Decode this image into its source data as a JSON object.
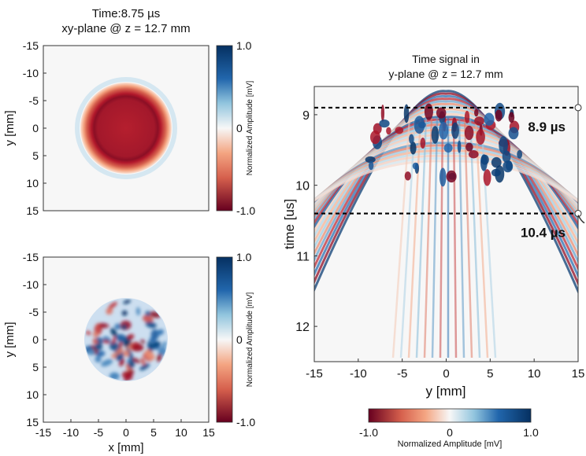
{
  "chart_data": [
    {
      "type": "heatmap",
      "title": "Time:8.75 µs",
      "subtitle": "xy-plane @ z = 12.7 mm",
      "xlabel": "",
      "ylabel": "y [mm]",
      "xlim": [
        -15,
        15
      ],
      "ylim": [
        -15,
        15
      ],
      "y_ticks": [
        "-15",
        "-10",
        "-5",
        "0",
        "5",
        "10",
        "15"
      ],
      "description_pattern": "uniform negative disc radius ~8.7 mm with faint positive rim",
      "colorbar": {
        "ticks": [
          "1.0",
          "0",
          "-1.0"
        ],
        "label": "Normalized Amplitude [mV]",
        "range": [
          -1.0,
          1.0
        ]
      }
    },
    {
      "type": "heatmap",
      "title": "",
      "xlabel": "x [mm]",
      "ylabel": "y [mm]",
      "xlim": [
        -15,
        15
      ],
      "ylim": [
        -15,
        15
      ],
      "x_ticks": [
        "-15",
        "-10",
        "-5",
        "0",
        "5",
        "10",
        "15"
      ],
      "y_ticks": [
        "-15",
        "-10",
        "-5",
        "0",
        "5",
        "10",
        "15"
      ],
      "colorbar": {
        "ticks": [
          "1.0",
          "0",
          "-1.0"
        ],
        "label": "Normalized Amplitude [mV]",
        "range": [
          -1.0,
          1.0
        ]
      }
    },
    {
      "type": "heatmap",
      "title": "Time signal in",
      "subtitle": "y-plane @ z = 12.7 mm",
      "xlabel": "y [mm]",
      "ylabel": "time [us]",
      "xlim": [
        -15,
        15
      ],
      "ylim": [
        8.6,
        12.5
      ],
      "x_ticks": [
        "-15",
        "-10",
        "-5",
        "0",
        "5",
        "10",
        "15"
      ],
      "y_ticks": [
        "9",
        "10",
        "11",
        "12"
      ],
      "annotations": [
        {
          "time": 8.9,
          "label": "8.9 µs"
        },
        {
          "time": 10.4,
          "label": "10.4 µs"
        }
      ],
      "colorbar": {
        "ticks": [
          "-1.0",
          "0",
          "1.0"
        ],
        "label": "Normalized Amplitude [mV]",
        "range": [
          -1.0,
          1.0
        ]
      }
    }
  ],
  "colors": {
    "negative": "#67001f",
    "neutral": "#f7f7f7",
    "positive": "#053061"
  }
}
